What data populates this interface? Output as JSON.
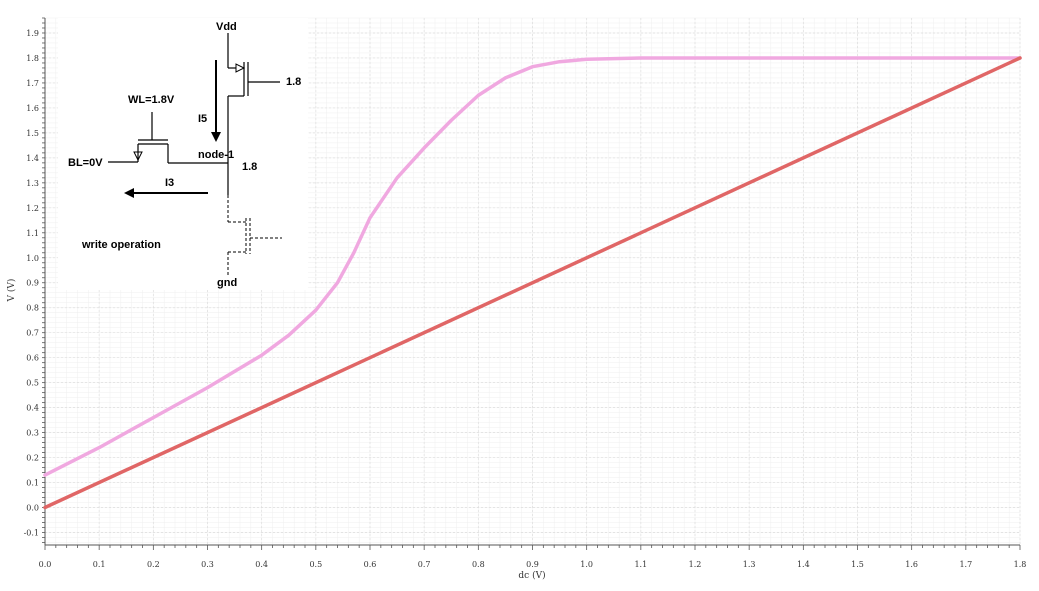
{
  "chart_data": {
    "type": "line",
    "xlabel": "dc (V)",
    "ylabel": "V (V)",
    "xlim": [
      0,
      1.8
    ],
    "ylim": [
      -0.15,
      1.96
    ],
    "grid": true,
    "x_ticks": [
      "0.0",
      "0.1",
      "0.2",
      "0.3",
      "0.4",
      "0.5",
      "0.6",
      "0.7",
      "0.8",
      "0.9",
      "1.0",
      "1.1",
      "1.2",
      "1.3",
      "1.4",
      "1.5",
      "1.6",
      "1.7",
      "1.8"
    ],
    "y_ticks": [
      "-0.1",
      "0.0",
      "0.1",
      "0.2",
      "0.3",
      "0.4",
      "0.5",
      "0.6",
      "0.7",
      "0.8",
      "0.9",
      "1.0",
      "1.1",
      "1.2",
      "1.3",
      "1.4",
      "1.5",
      "1.6",
      "1.7",
      "1.8",
      "1.9"
    ],
    "series": [
      {
        "color": "#f0a8e0",
        "x": [
          0.0,
          0.1,
          0.2,
          0.3,
          0.4,
          0.45,
          0.5,
          0.54,
          0.57,
          0.6,
          0.65,
          0.7,
          0.75,
          0.8,
          0.85,
          0.9,
          0.95,
          1.0,
          1.1,
          1.2,
          1.4,
          1.6,
          1.8
        ],
        "y": [
          0.13,
          0.24,
          0.36,
          0.48,
          0.61,
          0.69,
          0.79,
          0.9,
          1.02,
          1.16,
          1.32,
          1.44,
          1.55,
          1.65,
          1.72,
          1.765,
          1.785,
          1.795,
          1.8,
          1.8,
          1.8,
          1.8,
          1.8
        ]
      },
      {
        "color": "#e06666",
        "x": [
          0.0,
          1.8
        ],
        "y": [
          0.0,
          1.8
        ]
      }
    ]
  },
  "inset": {
    "vdd_label": "Vdd",
    "wl_label": "WL=1.8V",
    "bl_label": "BL=0V",
    "node_label": "node-1",
    "node_value": "1.8",
    "pmos_gate_value": "1.8",
    "i5_label": "I5",
    "i3_label": "I3",
    "caption": "write operation",
    "gnd_label": "gnd"
  }
}
